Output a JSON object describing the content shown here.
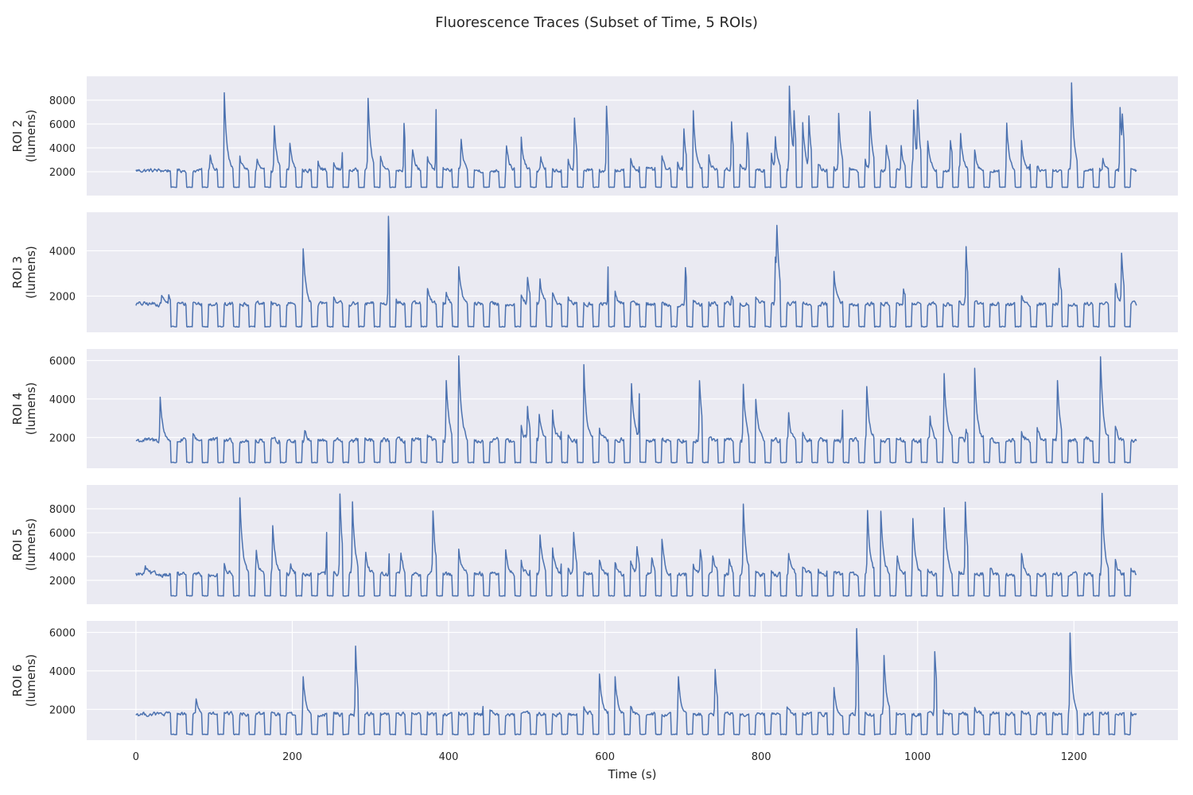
{
  "figure": {
    "title": "Fluorescence Traces (Subset of Time, 5 ROIs)"
  },
  "style": {
    "panel_bg": "#eaeaf2",
    "grid_color": "#ffffff",
    "line_color": "#4c72b0",
    "text_color": "#262626"
  },
  "chart_data": {
    "type": "line",
    "xlabel": "Time (s)",
    "xlim": [
      -63,
      1333
    ],
    "x_ticks": [
      0,
      200,
      400,
      600,
      800,
      1000,
      1200
    ],
    "x_range": [
      0,
      1280
    ],
    "grid": true,
    "series": [
      {
        "name": "ROI 2",
        "ylabel": [
          "ROI 2",
          "(lumens)"
        ],
        "ylim": [
          0,
          10000
        ],
        "y_ticks": [
          2000,
          4000,
          6000,
          8000
        ],
        "baseline": 2100,
        "noise": 220,
        "dip": 700,
        "peaks": [
          [
            95,
            3500
          ],
          [
            113,
            8600
          ],
          [
            133,
            3200
          ],
          [
            155,
            3000
          ],
          [
            177,
            5900
          ],
          [
            197,
            4400
          ],
          [
            230,
            4200
          ],
          [
            249,
            4200
          ],
          [
            264,
            3600
          ],
          [
            297,
            8100
          ],
          [
            310,
            5200
          ],
          [
            327,
            3300
          ],
          [
            343,
            6000
          ],
          [
            354,
            3800
          ],
          [
            370,
            4800
          ],
          [
            384,
            7100
          ],
          [
            416,
            4500
          ],
          [
            474,
            4300
          ],
          [
            491,
            7000
          ],
          [
            518,
            3200
          ],
          [
            549,
            5300
          ],
          [
            561,
            6500
          ],
          [
            602,
            7600
          ],
          [
            632,
            3400
          ],
          [
            645,
            4700
          ],
          [
            665,
            4700
          ],
          [
            668,
            6500
          ],
          [
            690,
            4000
          ],
          [
            701,
            5500
          ],
          [
            713,
            7000
          ],
          [
            731,
            4500
          ],
          [
            746,
            3300
          ],
          [
            762,
            6300
          ],
          [
            767,
            5200
          ],
          [
            782,
            5200
          ],
          [
            808,
            3300
          ],
          [
            812,
            3700
          ],
          [
            818,
            4600
          ],
          [
            836,
            9000
          ],
          [
            842,
            6100
          ],
          [
            848,
            4300
          ],
          [
            853,
            5600
          ],
          [
            861,
            6200
          ],
          [
            867,
            4800
          ],
          [
            887,
            3200
          ],
          [
            899,
            6900
          ],
          [
            907,
            4200
          ],
          [
            930,
            4600
          ],
          [
            939,
            6900
          ],
          [
            960,
            4300
          ],
          [
            979,
            4100
          ],
          [
            988,
            3800
          ],
          [
            995,
            6800
          ],
          [
            1000,
            7000
          ],
          [
            1008,
            4200
          ],
          [
            1013,
            3900
          ],
          [
            1042,
            4700
          ],
          [
            1055,
            5000
          ],
          [
            1069,
            8200
          ],
          [
            1114,
            6000
          ],
          [
            1131,
            6900
          ],
          [
            1145,
            6700
          ],
          [
            1197,
            9400
          ],
          [
            1237,
            3000
          ],
          [
            1259,
            7400
          ],
          [
            1262,
            4900
          ]
        ]
      },
      {
        "name": "ROI 3",
        "ylabel": [
          "ROI 3",
          "(lumens)"
        ],
        "ylim": [
          400,
          5700
        ],
        "y_ticks": [
          2000,
          4000
        ],
        "baseline": 1650,
        "noise": 130,
        "dip": 650,
        "peaks": [
          [
            33,
            2100
          ],
          [
            42,
            2000
          ],
          [
            66,
            2600
          ],
          [
            214,
            4150
          ],
          [
            246,
            4600
          ],
          [
            323,
            5500
          ],
          [
            368,
            4850
          ],
          [
            397,
            2200
          ],
          [
            413,
            3300
          ],
          [
            490,
            2500
          ],
          [
            501,
            2700
          ],
          [
            517,
            2700
          ],
          [
            532,
            2400
          ],
          [
            548,
            3200
          ],
          [
            604,
            3300
          ],
          [
            607,
            4300
          ],
          [
            703,
            3200
          ],
          [
            762,
            2000
          ],
          [
            788,
            3200
          ],
          [
            818,
            3800
          ],
          [
            820,
            4000
          ],
          [
            888,
            3000
          ],
          [
            890,
            4600
          ],
          [
            982,
            2400
          ],
          [
            1046,
            3300
          ],
          [
            1062,
            4200
          ],
          [
            1127,
            3600
          ],
          [
            1181,
            3200
          ],
          [
            1249,
            4750
          ],
          [
            1261,
            3900
          ]
        ]
      },
      {
        "name": "ROI 4",
        "ylabel": [
          "ROI 4",
          "(lumens)"
        ],
        "ylim": [
          400,
          6600
        ],
        "y_ticks": [
          2000,
          4000,
          6000
        ],
        "baseline": 1850,
        "noise": 170,
        "dip": 700,
        "peaks": [
          [
            31,
            4100
          ],
          [
            66,
            5200
          ],
          [
            216,
            2300
          ],
          [
            367,
            3600
          ],
          [
            397,
            4950
          ],
          [
            413,
            6250
          ],
          [
            488,
            5400
          ],
          [
            501,
            3500
          ],
          [
            516,
            3200
          ],
          [
            531,
            4800
          ],
          [
            545,
            5800
          ],
          [
            573,
            5800
          ],
          [
            587,
            4900
          ],
          [
            626,
            5000
          ],
          [
            634,
            4550
          ],
          [
            644,
            4200
          ],
          [
            721,
            4950
          ],
          [
            777,
            4650
          ],
          [
            791,
            5800
          ],
          [
            835,
            3200
          ],
          [
            848,
            4000
          ],
          [
            904,
            3500
          ],
          [
            935,
            4650
          ],
          [
            967,
            2200
          ],
          [
            1005,
            3650
          ],
          [
            1016,
            3000
          ],
          [
            1034,
            5450
          ],
          [
            1062,
            2500
          ],
          [
            1073,
            5600
          ],
          [
            1126,
            5350
          ],
          [
            1153,
            2500
          ],
          [
            1179,
            5000
          ],
          [
            1206,
            3800
          ],
          [
            1234,
            6100
          ],
          [
            1249,
            4550
          ]
        ]
      },
      {
        "name": "ROI 5",
        "ylabel": [
          "ROI 5",
          "(lumens)"
        ],
        "ylim": [
          0,
          10000
        ],
        "y_ticks": [
          2000,
          4000,
          6000,
          8000
        ],
        "baseline": 2500,
        "noise": 260,
        "dip": 700,
        "peaks": [
          [
            12,
            3200
          ],
          [
            110,
            5100
          ],
          [
            133,
            8900
          ],
          [
            154,
            4400
          ],
          [
            175,
            6700
          ],
          [
            198,
            3400
          ],
          [
            244,
            6100
          ],
          [
            261,
            9300
          ],
          [
            277,
            8600
          ],
          [
            294,
            4300
          ],
          [
            324,
            4200
          ],
          [
            339,
            4300
          ],
          [
            380,
            7700
          ],
          [
            412,
            5600
          ],
          [
            472,
            5100
          ],
          [
            488,
            8200
          ],
          [
            505,
            4900
          ],
          [
            517,
            5800
          ],
          [
            532,
            5600
          ],
          [
            545,
            8500
          ],
          [
            560,
            6100
          ],
          [
            588,
            8200
          ],
          [
            611,
            4500
          ],
          [
            628,
            8600
          ],
          [
            641,
            4700
          ],
          [
            660,
            4000
          ],
          [
            672,
            6600
          ],
          [
            707,
            8000
          ],
          [
            722,
            4300
          ],
          [
            738,
            4200
          ],
          [
            759,
            3900
          ],
          [
            777,
            8300
          ],
          [
            806,
            4700
          ],
          [
            835,
            4400
          ],
          [
            850,
            4000
          ],
          [
            868,
            3900
          ],
          [
            885,
            4400
          ],
          [
            936,
            7900
          ],
          [
            953,
            7700
          ],
          [
            974,
            4200
          ],
          [
            994,
            7000
          ],
          [
            1007,
            4600
          ],
          [
            1034,
            8200
          ],
          [
            1047,
            5400
          ],
          [
            1061,
            8500
          ],
          [
            1086,
            6800
          ],
          [
            1129,
            8300
          ],
          [
            1236,
            9100
          ],
          [
            1249,
            6700
          ],
          [
            1270,
            4100
          ]
        ]
      },
      {
        "name": "ROI 6",
        "ylabel": [
          "ROI 6",
          "(lumens)"
        ],
        "ylim": [
          400,
          6600
        ],
        "y_ticks": [
          2000,
          4000,
          6000
        ],
        "baseline": 1750,
        "noise": 140,
        "dip": 700,
        "peaks": [
          [
            77,
            2500
          ],
          [
            214,
            3700
          ],
          [
            281,
            5200
          ],
          [
            327,
            2600
          ],
          [
            367,
            2400
          ],
          [
            445,
            5700
          ],
          [
            566,
            4900
          ],
          [
            592,
            4700
          ],
          [
            607,
            5000
          ],
          [
            611,
            4300
          ],
          [
            630,
            2900
          ],
          [
            694,
            3800
          ],
          [
            741,
            4150
          ],
          [
            826,
            5150
          ],
          [
            890,
            5300
          ],
          [
            922,
            6300
          ],
          [
            957,
            4700
          ],
          [
            1022,
            5100
          ],
          [
            1071,
            2500
          ],
          [
            1128,
            2800
          ],
          [
            1195,
            5900
          ]
        ]
      }
    ]
  }
}
